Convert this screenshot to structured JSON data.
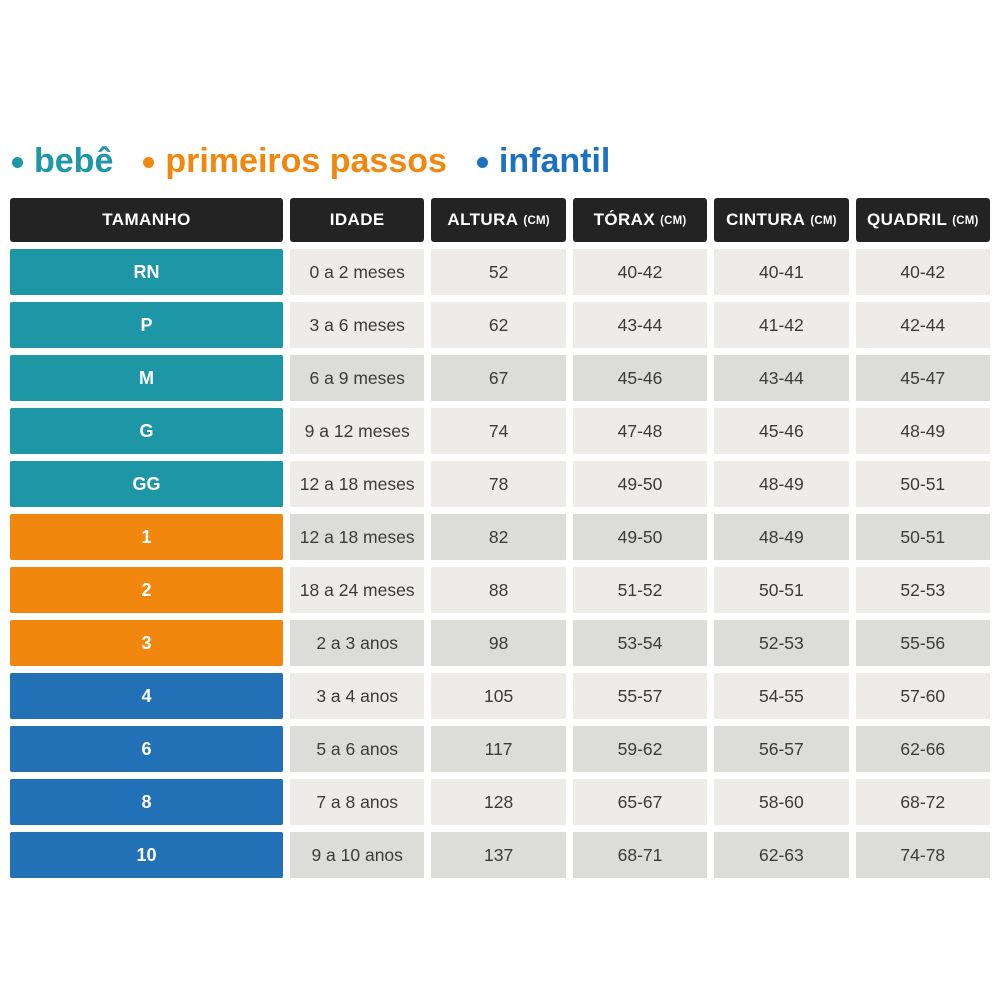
{
  "chart_data": {
    "type": "table",
    "legend": [
      {
        "label": "bebê",
        "color": "#1E97A6"
      },
      {
        "label": "primeiros passos",
        "color": "#F1870E"
      },
      {
        "label": "infantil",
        "color": "#1C72C0"
      }
    ],
    "columns": [
      {
        "label": "TAMANHO",
        "unit": ""
      },
      {
        "label": "IDADE",
        "unit": ""
      },
      {
        "label": "ALTURA",
        "unit": "(CM)"
      },
      {
        "label": "TÓRAX",
        "unit": "(CM)"
      },
      {
        "label": "CINTURA",
        "unit": "(CM)"
      },
      {
        "label": "QUADRIL",
        "unit": "(CM)"
      }
    ],
    "rows": [
      {
        "tamanho": "RN",
        "group": "bebe",
        "idade": "0 a 2 meses",
        "altura": "52",
        "torax": "40-42",
        "cintura": "40-41",
        "quadril": "40-42",
        "shade": "light"
      },
      {
        "tamanho": "P",
        "group": "bebe",
        "idade": "3 a 6 meses",
        "altura": "62",
        "torax": "43-44",
        "cintura": "41-42",
        "quadril": "42-44",
        "shade": "light"
      },
      {
        "tamanho": "M",
        "group": "bebe",
        "idade": "6 a 9 meses",
        "altura": "67",
        "torax": "45-46",
        "cintura": "43-44",
        "quadril": "45-47",
        "shade": "dark"
      },
      {
        "tamanho": "G",
        "group": "bebe",
        "idade": "9 a 12 meses",
        "altura": "74",
        "torax": "47-48",
        "cintura": "45-46",
        "quadril": "48-49",
        "shade": "light"
      },
      {
        "tamanho": "GG",
        "group": "bebe",
        "idade": "12 a 18 meses",
        "altura": "78",
        "torax": "49-50",
        "cintura": "48-49",
        "quadril": "50-51",
        "shade": "light"
      },
      {
        "tamanho": "1",
        "group": "primeiros-passos",
        "idade": "12 a 18 meses",
        "altura": "82",
        "torax": "49-50",
        "cintura": "48-49",
        "quadril": "50-51",
        "shade": "dark"
      },
      {
        "tamanho": "2",
        "group": "primeiros-passos",
        "idade": "18 a 24 meses",
        "altura": "88",
        "torax": "51-52",
        "cintura": "50-51",
        "quadril": "52-53",
        "shade": "light"
      },
      {
        "tamanho": "3",
        "group": "primeiros-passos",
        "idade": "2 a 3 anos",
        "altura": "98",
        "torax": "53-54",
        "cintura": "52-53",
        "quadril": "55-56",
        "shade": "dark"
      },
      {
        "tamanho": "4",
        "group": "infantil",
        "idade": "3 a 4 anos",
        "altura": "105",
        "torax": "55-57",
        "cintura": "54-55",
        "quadril": "57-60",
        "shade": "light"
      },
      {
        "tamanho": "6",
        "group": "infantil",
        "idade": "5 a 6 anos",
        "altura": "117",
        "torax": "59-62",
        "cintura": "56-57",
        "quadril": "62-66",
        "shade": "dark"
      },
      {
        "tamanho": "8",
        "group": "infantil",
        "idade": "7 a 8 anos",
        "altura": "128",
        "torax": "65-67",
        "cintura": "58-60",
        "quadril": "68-72",
        "shade": "light"
      },
      {
        "tamanho": "10",
        "group": "infantil",
        "idade": "9 a 10 anos",
        "altura": "137",
        "torax": "68-71",
        "cintura": "62-63",
        "quadril": "74-78",
        "shade": "dark"
      }
    ],
    "colors": {
      "header_bg": "#232323",
      "header_text": "#FFFFFF",
      "bebe": "#1D97A5",
      "primeiros_passos": "#F1870E",
      "infantil": "#2270B5",
      "row_light": "#EDECE9",
      "row_dark": "#DCDCDA",
      "cell_text": "#3B3B3B"
    }
  }
}
